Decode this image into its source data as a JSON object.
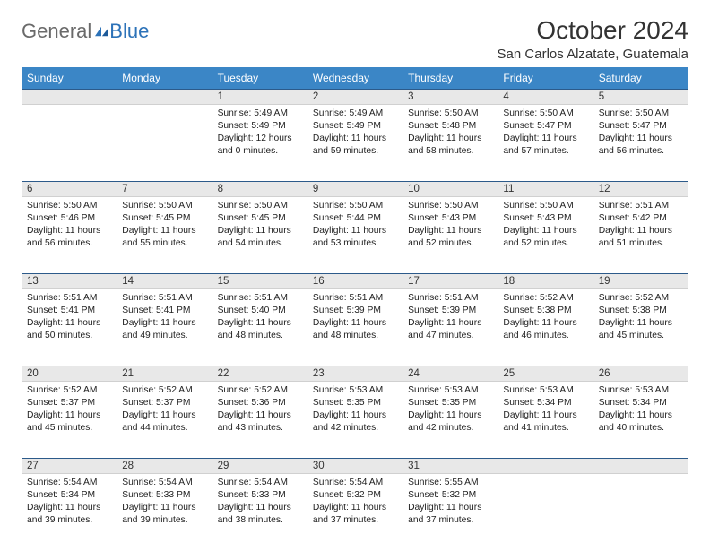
{
  "logo": {
    "text1": "General",
    "text2": "Blue"
  },
  "title": "October 2024",
  "location": "San Carlos Alzatate, Guatemala",
  "colors": {
    "header_bg": "#3b86c6",
    "header_text": "#ffffff",
    "daynum_bg": "#e8e8e8",
    "rule": "#2c5a8a",
    "body_bg": "#ffffff",
    "logo_gray": "#6a6a6a",
    "logo_blue": "#2c72b8"
  },
  "columns": [
    "Sunday",
    "Monday",
    "Tuesday",
    "Wednesday",
    "Thursday",
    "Friday",
    "Saturday"
  ],
  "weeks": [
    [
      null,
      null,
      {
        "d": "1",
        "sr": "5:49 AM",
        "ss": "5:49 PM",
        "dl": "12 hours and 0 minutes."
      },
      {
        "d": "2",
        "sr": "5:49 AM",
        "ss": "5:49 PM",
        "dl": "11 hours and 59 minutes."
      },
      {
        "d": "3",
        "sr": "5:50 AM",
        "ss": "5:48 PM",
        "dl": "11 hours and 58 minutes."
      },
      {
        "d": "4",
        "sr": "5:50 AM",
        "ss": "5:47 PM",
        "dl": "11 hours and 57 minutes."
      },
      {
        "d": "5",
        "sr": "5:50 AM",
        "ss": "5:47 PM",
        "dl": "11 hours and 56 minutes."
      }
    ],
    [
      {
        "d": "6",
        "sr": "5:50 AM",
        "ss": "5:46 PM",
        "dl": "11 hours and 56 minutes."
      },
      {
        "d": "7",
        "sr": "5:50 AM",
        "ss": "5:45 PM",
        "dl": "11 hours and 55 minutes."
      },
      {
        "d": "8",
        "sr": "5:50 AM",
        "ss": "5:45 PM",
        "dl": "11 hours and 54 minutes."
      },
      {
        "d": "9",
        "sr": "5:50 AM",
        "ss": "5:44 PM",
        "dl": "11 hours and 53 minutes."
      },
      {
        "d": "10",
        "sr": "5:50 AM",
        "ss": "5:43 PM",
        "dl": "11 hours and 52 minutes."
      },
      {
        "d": "11",
        "sr": "5:50 AM",
        "ss": "5:43 PM",
        "dl": "11 hours and 52 minutes."
      },
      {
        "d": "12",
        "sr": "5:51 AM",
        "ss": "5:42 PM",
        "dl": "11 hours and 51 minutes."
      }
    ],
    [
      {
        "d": "13",
        "sr": "5:51 AM",
        "ss": "5:41 PM",
        "dl": "11 hours and 50 minutes."
      },
      {
        "d": "14",
        "sr": "5:51 AM",
        "ss": "5:41 PM",
        "dl": "11 hours and 49 minutes."
      },
      {
        "d": "15",
        "sr": "5:51 AM",
        "ss": "5:40 PM",
        "dl": "11 hours and 48 minutes."
      },
      {
        "d": "16",
        "sr": "5:51 AM",
        "ss": "5:39 PM",
        "dl": "11 hours and 48 minutes."
      },
      {
        "d": "17",
        "sr": "5:51 AM",
        "ss": "5:39 PM",
        "dl": "11 hours and 47 minutes."
      },
      {
        "d": "18",
        "sr": "5:52 AM",
        "ss": "5:38 PM",
        "dl": "11 hours and 46 minutes."
      },
      {
        "d": "19",
        "sr": "5:52 AM",
        "ss": "5:38 PM",
        "dl": "11 hours and 45 minutes."
      }
    ],
    [
      {
        "d": "20",
        "sr": "5:52 AM",
        "ss": "5:37 PM",
        "dl": "11 hours and 45 minutes."
      },
      {
        "d": "21",
        "sr": "5:52 AM",
        "ss": "5:37 PM",
        "dl": "11 hours and 44 minutes."
      },
      {
        "d": "22",
        "sr": "5:52 AM",
        "ss": "5:36 PM",
        "dl": "11 hours and 43 minutes."
      },
      {
        "d": "23",
        "sr": "5:53 AM",
        "ss": "5:35 PM",
        "dl": "11 hours and 42 minutes."
      },
      {
        "d": "24",
        "sr": "5:53 AM",
        "ss": "5:35 PM",
        "dl": "11 hours and 42 minutes."
      },
      {
        "d": "25",
        "sr": "5:53 AM",
        "ss": "5:34 PM",
        "dl": "11 hours and 41 minutes."
      },
      {
        "d": "26",
        "sr": "5:53 AM",
        "ss": "5:34 PM",
        "dl": "11 hours and 40 minutes."
      }
    ],
    [
      {
        "d": "27",
        "sr": "5:54 AM",
        "ss": "5:34 PM",
        "dl": "11 hours and 39 minutes."
      },
      {
        "d": "28",
        "sr": "5:54 AM",
        "ss": "5:33 PM",
        "dl": "11 hours and 39 minutes."
      },
      {
        "d": "29",
        "sr": "5:54 AM",
        "ss": "5:33 PM",
        "dl": "11 hours and 38 minutes."
      },
      {
        "d": "30",
        "sr": "5:54 AM",
        "ss": "5:32 PM",
        "dl": "11 hours and 37 minutes."
      },
      {
        "d": "31",
        "sr": "5:55 AM",
        "ss": "5:32 PM",
        "dl": "11 hours and 37 minutes."
      },
      null,
      null
    ]
  ],
  "labels": {
    "sunrise": "Sunrise: ",
    "sunset": "Sunset: ",
    "daylight": "Daylight: "
  }
}
